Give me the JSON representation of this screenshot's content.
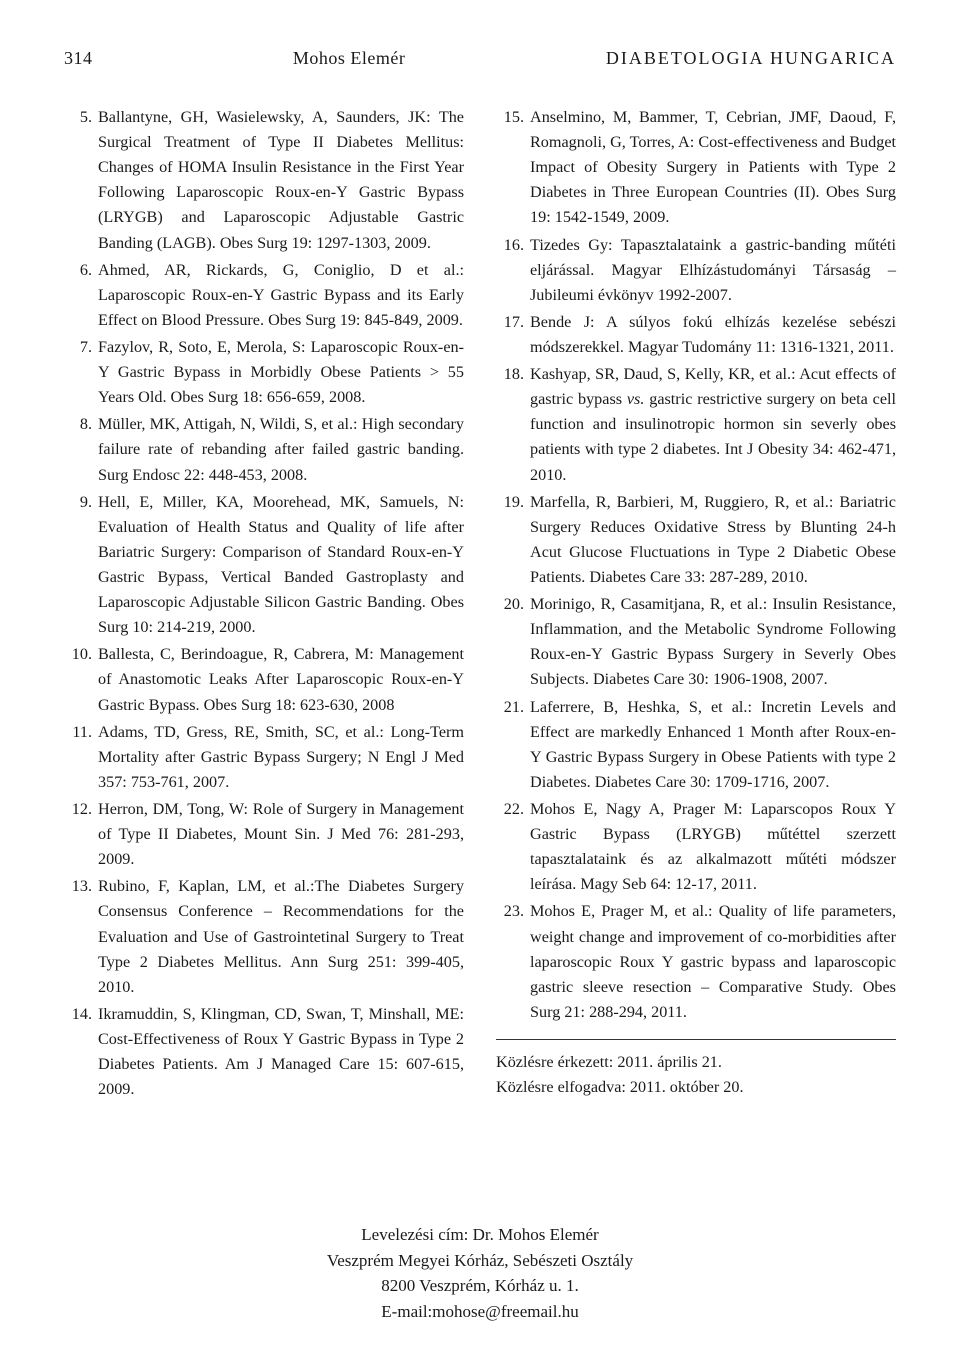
{
  "header": {
    "page_number": "314",
    "author": "Mohos Elemér",
    "journal": "DIABETOLOGIA HUNGARICA"
  },
  "references_left": [
    {
      "n": "5.",
      "text": "Ballantyne, GH, Wasielewsky, A, Saunders, JK: The Surgical Treatment of Type II Diabetes Mellitus: Changes of HOMA Insulin Resistance in the First Year Following Laparoscopic Roux-en-Y Gastric Bypass (LRYGB) and Laparoscopic Adjustable Gastric Banding (LAGB). Obes Surg 19: 1297-1303, 2009."
    },
    {
      "n": "6.",
      "text": "Ahmed, AR, Rickards, G, Coniglio, D et al.: Laparoscopic Roux-en-Y Gastric Bypass and its Early Effect on Blood Pressure. Obes Surg 19: 845-849, 2009."
    },
    {
      "n": "7.",
      "text": "Fazylov, R, Soto, E, Merola, S: Laparoscopic Roux-en-Y Gastric Bypass in Morbidly Obese Patients > 55 Years Old. Obes Surg 18: 656-659, 2008."
    },
    {
      "n": "8.",
      "text": "Müller, MK, Attigah, N, Wildi, S, et al.: High secondary failure rate of rebanding after failed gastric banding. Surg Endosc 22: 448-453, 2008."
    },
    {
      "n": "9.",
      "text": "Hell, E, Miller, KA, Moorehead, MK, Samuels, N: Evaluation of Health Status and Quality of life after Bariatric Surgery: Comparison of Standard Roux-en-Y Gastric Bypass, Vertical Banded Gastroplasty and Laparoscopic Adjustable Silicon Gastric Banding. Obes Surg 10: 214-219, 2000."
    },
    {
      "n": "10.",
      "text": "Ballesta, C, Berindoague, R, Cabrera, M: Management of Anastomotic Leaks After Laparoscopic Roux-en-Y Gastric Bypass. Obes Surg 18: 623-630, 2008"
    },
    {
      "n": "11.",
      "text": "Adams, TD, Gress, RE, Smith, SC, et al.: Long-Term Mortality after Gastric Bypass Surgery; N Engl J Med 357: 753-761, 2007."
    },
    {
      "n": "12.",
      "text": "Herron, DM, Tong, W: Role of Surgery in Management of Type II Diabetes, Mount Sin. J Med 76: 281-293, 2009."
    },
    {
      "n": "13.",
      "text": "Rubino, F, Kaplan, LM, et al.:The Diabetes Surgery Consensus Conference – Recommendations for the Evaluation and Use of Gastrointetinal Surgery to Treat Type 2 Diabetes Mellitus. Ann Surg 251: 399-405, 2010."
    },
    {
      "n": "14.",
      "text": "Ikramuddin, S, Klingman, CD, Swan, T, Minshall, ME: Cost-Effectiveness of Roux Y Gastric Bypass in Type 2 Diabetes Patients. Am J Managed Care 15: 607-615, 2009."
    }
  ],
  "references_right": [
    {
      "n": "15.",
      "text": "Anselmino, M, Bammer, T, Cebrian, JMF, Daoud, F, Romagnoli, G, Torres, A: Cost-effectiveness and Budget Impact of Obesity Surgery in Patients with Type 2 Diabetes in Three European Countries (II). Obes Surg 19: 1542-1549, 2009."
    },
    {
      "n": "16.",
      "text": "Tizedes Gy: Tapasztalataink a gastric-banding műtéti eljárással. Magyar Elhízástudományi Társaság – Jubileumi évkönyv 1992-2007."
    },
    {
      "n": "17.",
      "text": "Bende J: A súlyos fokú elhízás kezelése sebészi módszerekkel. Magyar Tudomány 11: 1316-1321, 2011."
    },
    {
      "n": "18.",
      "text": "Kashyap, SR, Daud, S, Kelly, KR, et al.: Acut effects of gastric bypass "
    },
    {
      "n": "19.",
      "text": "Marfella, R, Barbieri, M, Ruggiero, R, et al.: Bariatric Surgery Reduces Oxidative Stress by Blunting 24-h Acut Glucose Fluctuations in Type 2 Diabetic Obese Patients. Diabetes Care 33: 287-289, 2010."
    },
    {
      "n": "20.",
      "text": "Morinigo, R, Casamitjana, R, et al.: Insulin Resistance, Inflammation, and the Metabolic Syndrome Following Roux-en-Y Gastric Bypass Surgery in Severly Obes Subjects. Diabetes Care 30: 1906-1908, 2007."
    },
    {
      "n": "21.",
      "text": "Laferrere, B, Heshka, S, et al.: Incretin Levels and Effect are markedly Enhanced 1 Month after Roux-en-Y Gastric Bypass Surgery in Obese Patients with type 2 Diabetes. Diabetes Care 30: 1709-1716, 2007."
    },
    {
      "n": "22.",
      "text": "Mohos E, Nagy A, Prager M: Laparscopos Roux Y Gastric Bypass (LRYGB) műtéttel szerzett tapasztalataink és az alkalmazott műtéti módszer leírása. Magy Seb 64: 12-17, 2011."
    },
    {
      "n": "23.",
      "text": "Mohos E, Prager M, et al.: Quality of life parameters, weight change and improvement of co-morbidities after laparoscopic Roux Y gastric bypass and laparoscopic gastric sleeve resection – Comparative Study. Obes Surg 21: 288-294, 2011."
    }
  ],
  "ref18_tail": " gastric restrictive surgery on beta cell function and insulinotropic hormon sin severly obes patients with type 2 diabetes. Int J Obesity 34: 462-471, 2010.",
  "ref18_vs": "vs.",
  "received": {
    "line1": "Közlésre érkezett: 2011. április 21.",
    "line2": "Közlésre elfogadva: 2011. október 20."
  },
  "footer": {
    "line1": "Levelezési cím: Dr. Mohos Elemér",
    "line2": "Veszprém Megyei Kórház, Sebészeti Osztály",
    "line3": "8200  Veszprém, Kórház u. 1.",
    "line4": "E-mail:mohose@freemail.hu"
  }
}
